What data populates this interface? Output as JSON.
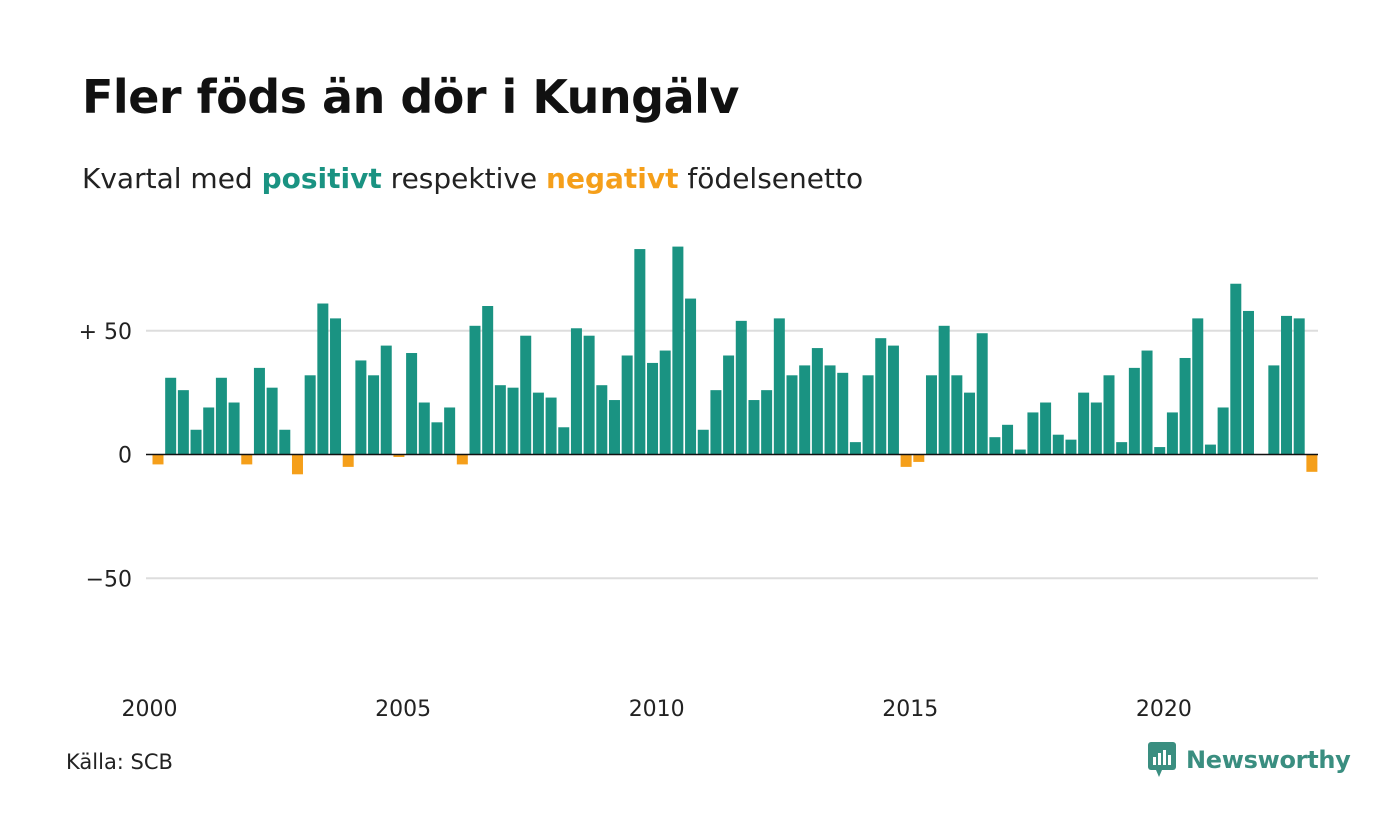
{
  "title": "Fler föds än dör i Kungälv",
  "subtitle": {
    "prefix": "Kvartal med ",
    "positive": "positivt",
    "middle": " respektive ",
    "negative": "negativt",
    "suffix": " födelsenetto"
  },
  "source": "Källa: SCB",
  "brand": "Newsworthy",
  "colors": {
    "positive": "#1a9382",
    "negative": "#f59f1a",
    "grid": "#dddddd",
    "zero_line": "#111111",
    "brand": "#3a8e80"
  },
  "chart_data": {
    "type": "bar",
    "x_start": "2000 Q1",
    "y_ticks": [
      {
        "value": 50,
        "label": "+ 50"
      },
      {
        "value": 0,
        "label": "0"
      },
      {
        "value": -50,
        "label": "−50"
      }
    ],
    "x_ticks": [
      "2000",
      "2005",
      "2010",
      "2015",
      "2020"
    ],
    "ylim": [
      -93,
      85
    ],
    "grid": true,
    "values": [
      -4,
      31,
      26,
      10,
      19,
      31,
      21,
      -4,
      35,
      27,
      10,
      -8,
      32,
      61,
      55,
      -5,
      38,
      32,
      44,
      -1,
      41,
      21,
      13,
      19,
      -4,
      52,
      60,
      28,
      27,
      48,
      25,
      23,
      11,
      51,
      48,
      28,
      22,
      40,
      83,
      37,
      42,
      84,
      63,
      10,
      26,
      40,
      54,
      22,
      26,
      55,
      32,
      36,
      43,
      36,
      33,
      5,
      32,
      47,
      44,
      -5,
      -3,
      32,
      52,
      32,
      25,
      49,
      7,
      12,
      2,
      17,
      21,
      8,
      6,
      25,
      21,
      32,
      5,
      35,
      42,
      3,
      17,
      39,
      55,
      4,
      19,
      69,
      58,
      0,
      36,
      56,
      55,
      -7
    ]
  }
}
